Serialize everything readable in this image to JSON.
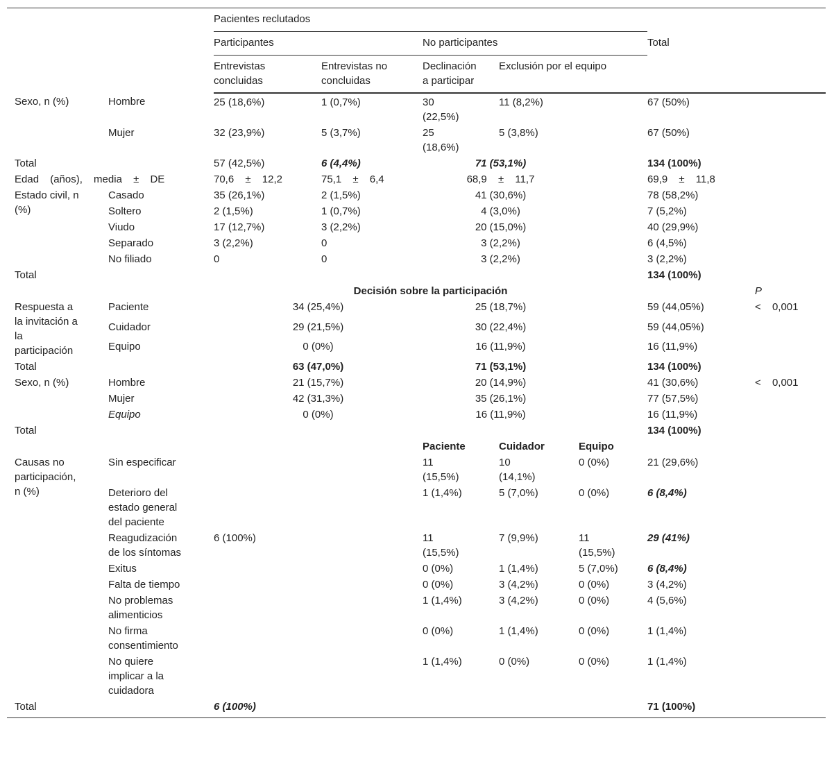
{
  "header": {
    "recruited": "Pacientes reclutados",
    "participants": "Participantes",
    "non_participants": "No participantes",
    "total": "Total",
    "completed": "Entrevistas concluidas",
    "not_completed": "Entrevistas no concluidas",
    "declined": "Declinación a participar",
    "excluded": "Exclusión por el equipo"
  },
  "rows": [
    [
      "Sexo, n (%)",
      "Hombre",
      "25 (18,6%)",
      "1 (0,7%)",
      "30 (22,5%)",
      "11 (8,2%)",
      "67 (50%)"
    ],
    [
      "Mujer",
      "32 (23,9%)",
      "5 (3,7%)",
      "25 (18,6%)",
      "5 (3,8%)",
      "67 (50%)"
    ],
    [
      "Total",
      "57 (42,5%)",
      "6 (4,4%)",
      "71 (53,1%)",
      "134 (100%)"
    ],
    [
      "Edad (años), media ± DE",
      "70,6 ± 12,2",
      "75,1 ± 6,4",
      "68,9 ± 11,7",
      "69,9 ± 11,8"
    ],
    [
      "Estado civil, n (%)",
      "Casado",
      "35 (26,1%)",
      "2 (1,5%)",
      "41 (30,6%)",
      "78 (58,2%)"
    ],
    [
      "Soltero",
      "2 (1,5%)",
      "1 (0,7%)",
      "4 (3,0%)",
      "7 (5,2%)"
    ],
    [
      "Viudo",
      "17 (12,7%)",
      "3 (2,2%)",
      "20 (15,0%)",
      "40 (29,9%)"
    ],
    [
      "Separado",
      "3 (2,2%)",
      "0",
      "3 (2,2%)",
      "6 (4,5%)"
    ],
    [
      "No filiado",
      "0",
      "0",
      "3 (2,2%)",
      "3 (2,2%)"
    ],
    [
      "Total",
      "134 (100%)"
    ],
    [
      "Decisión sobre la participación",
      "P"
    ],
    [
      "Respuesta a la invitación a la participación",
      "Paciente",
      "34 (25,4%)",
      "25 (18,7%)",
      "59 (44,05%)",
      "< 0,001"
    ],
    [
      "Cuidador",
      "29 (21,5%)",
      "30 (22,4%)",
      "59 (44,05%)"
    ],
    [
      "Equipo",
      "0 (0%)",
      "16 (11,9%)",
      "16 (11,9%)"
    ],
    [
      "Total",
      "63 (47,0%)",
      "71 (53,1%)",
      "134 (100%)"
    ],
    [
      "Sexo, n (%)",
      "Hombre",
      "21 (15,7%)",
      "20 (14,9%)",
      "41 (30,6%)",
      "< 0,001"
    ],
    [
      "Mujer",
      "42 (31,3%)",
      "35 (26,1%)",
      "77 (57,5%)"
    ],
    [
      "Equipo",
      "0 (0%)",
      "16 (11,9%)",
      "16 (11,9%)"
    ],
    [
      "Total",
      "134 (100%)"
    ],
    [
      "Paciente",
      "Cuidador",
      "Equipo"
    ],
    [
      "Causas no participación, n (%)",
      "Sin especificar",
      "11 (15,5%)",
      "10 (14,1%)",
      "0 (0%)",
      "21 (29,6%)"
    ],
    [
      "Deterioro del estado general del paciente",
      "1 (1,4%)",
      "5 (7,0%)",
      "0 (0%)",
      "6 (8,4%)"
    ],
    [
      "Reagudización de los síntomas",
      "6 (100%)",
      "11 (15,5%)",
      "7 (9,9%)",
      "11 (15,5%)",
      "29 (41%)"
    ],
    [
      "Exitus",
      "0 (0%)",
      "1 (1,4%)",
      "5 (7,0%)",
      "6 (8,4%)"
    ],
    [
      "Falta de tiempo",
      "0 (0%)",
      "3 (4,2%)",
      "0 (0%)",
      "3 (4,2%)"
    ],
    [
      "No problemas alimenticios",
      "1 (1,4%)",
      "3 (4,2%)",
      "0 (0%)",
      "4 (5,6%)"
    ],
    [
      "No firma consentimiento",
      "0 (0%)",
      "1 (1,4%)",
      "0 (0%)",
      "1 (1,4%)"
    ],
    [
      "No quiere implicar a la cuidadora",
      "1 (1,4%)",
      "0 (0%)",
      "0 (0%)",
      "1 (1,4%)"
    ],
    [
      "Total",
      "6 (100%)",
      "71 (100%)"
    ]
  ]
}
